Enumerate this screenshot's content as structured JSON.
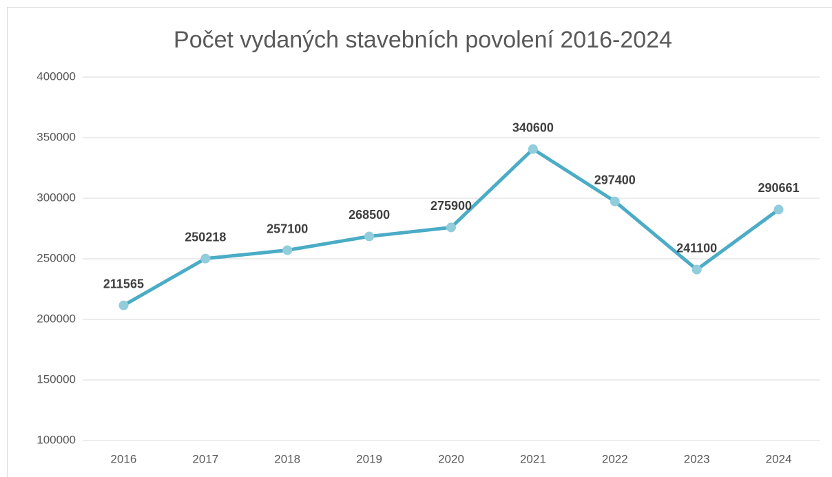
{
  "chart_data": {
    "type": "line",
    "title": "Počet vydaných stavebních povolení 2016-2024",
    "categories": [
      "2016",
      "2017",
      "2018",
      "2019",
      "2020",
      "2021",
      "2022",
      "2023",
      "2024"
    ],
    "series": [
      {
        "name": "Počet vydaných stavebních povolení",
        "color": "#4bacc6",
        "marker_color": "#92cddc",
        "values": [
          211565,
          250218,
          257100,
          268500,
          275900,
          340600,
          297400,
          241100,
          290661
        ]
      }
    ],
    "ylim": [
      100000,
      400000
    ],
    "yticks": [
      100000,
      150000,
      200000,
      250000,
      300000,
      350000,
      400000
    ],
    "grid": true,
    "data_labels": true
  }
}
